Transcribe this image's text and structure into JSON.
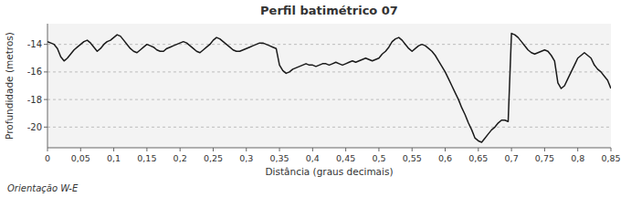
{
  "chart_data": {
    "type": "line",
    "title": "Perfil batimétrico 07",
    "xlabel": "Distância (graus decimais)",
    "ylabel": "Profundidade (metros)",
    "footnote": "Orientação W-E",
    "color": "#1a1a1a",
    "grid": true,
    "xlim": [
      0,
      0.85
    ],
    "ylim": [
      -21.5,
      -12.5
    ],
    "yticks": [
      -14,
      -16,
      -18,
      -20
    ],
    "xticks": [
      0,
      {
        "value": 0.05,
        "label": "0,05"
      },
      {
        "value": 0.1,
        "label": "0,1"
      },
      {
        "value": 0.15,
        "label": "0,15"
      },
      {
        "value": 0.2,
        "label": "0,2"
      },
      {
        "value": 0.25,
        "label": "0,25"
      },
      {
        "value": 0.3,
        "label": "0,3"
      },
      {
        "value": 0.35,
        "label": "0,35"
      },
      {
        "value": 0.4,
        "label": "0,4"
      },
      {
        "value": 0.45,
        "label": "0,45"
      },
      {
        "value": 0.5,
        "label": "0,5"
      },
      {
        "value": 0.55,
        "label": "0,55"
      },
      {
        "value": 0.6,
        "label": "0,6"
      },
      {
        "value": 0.65,
        "label": "0,65"
      },
      {
        "value": 0.7,
        "label": "0,7"
      },
      {
        "value": 0.75,
        "label": "0,75"
      },
      {
        "value": 0.8,
        "label": "0,8"
      },
      {
        "value": 0.85,
        "label": "0,85"
      }
    ],
    "x": [
      0.0,
      0.005,
      0.01,
      0.015,
      0.02,
      0.025,
      0.03,
      0.035,
      0.04,
      0.045,
      0.05,
      0.055,
      0.06,
      0.065,
      0.07,
      0.075,
      0.08,
      0.085,
      0.09,
      0.095,
      0.1,
      0.105,
      0.11,
      0.115,
      0.12,
      0.125,
      0.13,
      0.135,
      0.14,
      0.145,
      0.15,
      0.155,
      0.16,
      0.165,
      0.17,
      0.175,
      0.18,
      0.185,
      0.19,
      0.195,
      0.2,
      0.205,
      0.21,
      0.215,
      0.22,
      0.225,
      0.23,
      0.235,
      0.24,
      0.245,
      0.25,
      0.255,
      0.26,
      0.265,
      0.27,
      0.275,
      0.28,
      0.285,
      0.29,
      0.295,
      0.3,
      0.305,
      0.31,
      0.315,
      0.32,
      0.325,
      0.33,
      0.335,
      0.34,
      0.345,
      0.35,
      0.355,
      0.36,
      0.365,
      0.37,
      0.375,
      0.38,
      0.385,
      0.39,
      0.395,
      0.4,
      0.405,
      0.41,
      0.415,
      0.42,
      0.425,
      0.43,
      0.435,
      0.44,
      0.445,
      0.45,
      0.455,
      0.46,
      0.465,
      0.47,
      0.475,
      0.48,
      0.485,
      0.49,
      0.495,
      0.5,
      0.505,
      0.51,
      0.515,
      0.52,
      0.525,
      0.53,
      0.535,
      0.54,
      0.545,
      0.55,
      0.555,
      0.56,
      0.565,
      0.57,
      0.575,
      0.58,
      0.585,
      0.59,
      0.595,
      0.6,
      0.605,
      0.61,
      0.615,
      0.62,
      0.625,
      0.63,
      0.635,
      0.64,
      0.645,
      0.65,
      0.655,
      0.66,
      0.665,
      0.67,
      0.675,
      0.68,
      0.685,
      0.69,
      0.695,
      0.7,
      0.705,
      0.71,
      0.715,
      0.72,
      0.725,
      0.73,
      0.735,
      0.74,
      0.745,
      0.75,
      0.755,
      0.76,
      0.765,
      0.77,
      0.775,
      0.78,
      0.785,
      0.79,
      0.795,
      0.8,
      0.805,
      0.81,
      0.815,
      0.82,
      0.825,
      0.83,
      0.835,
      0.84,
      0.845,
      0.85
    ],
    "values": [
      -13.8,
      -13.9,
      -14.0,
      -14.3,
      -14.9,
      -15.2,
      -15.0,
      -14.7,
      -14.4,
      -14.2,
      -14.0,
      -13.8,
      -13.7,
      -13.9,
      -14.2,
      -14.5,
      -14.3,
      -14.0,
      -13.8,
      -13.7,
      -13.5,
      -13.3,
      -13.4,
      -13.7,
      -14.0,
      -14.3,
      -14.5,
      -14.6,
      -14.4,
      -14.2,
      -14.0,
      -14.1,
      -14.2,
      -14.4,
      -14.5,
      -14.5,
      -14.3,
      -14.2,
      -14.1,
      -14.0,
      -13.9,
      -13.8,
      -13.9,
      -14.1,
      -14.3,
      -14.5,
      -14.6,
      -14.4,
      -14.2,
      -14.0,
      -13.7,
      -13.5,
      -13.6,
      -13.8,
      -14.0,
      -14.2,
      -14.4,
      -14.5,
      -14.5,
      -14.4,
      -14.3,
      -14.2,
      -14.1,
      -14.0,
      -13.9,
      -13.9,
      -14.0,
      -14.1,
      -14.2,
      -14.3,
      -15.5,
      -15.9,
      -16.1,
      -16.0,
      -15.8,
      -15.7,
      -15.6,
      -15.5,
      -15.4,
      -15.5,
      -15.5,
      -15.6,
      -15.5,
      -15.4,
      -15.4,
      -15.5,
      -15.4,
      -15.3,
      -15.4,
      -15.5,
      -15.4,
      -15.3,
      -15.2,
      -15.3,
      -15.2,
      -15.1,
      -15.0,
      -15.1,
      -15.2,
      -15.1,
      -15.0,
      -14.7,
      -14.5,
      -14.2,
      -13.8,
      -13.6,
      -13.5,
      -13.7,
      -14.0,
      -14.3,
      -14.5,
      -14.3,
      -14.1,
      -14.0,
      -14.1,
      -14.3,
      -14.5,
      -14.8,
      -15.2,
      -15.6,
      -16.0,
      -16.5,
      -17.0,
      -17.5,
      -18.0,
      -18.6,
      -19.1,
      -19.7,
      -20.2,
      -20.8,
      -21.0,
      -21.1,
      -20.8,
      -20.5,
      -20.2,
      -20.0,
      -19.7,
      -19.5,
      -19.5,
      -19.6,
      -13.2,
      -13.3,
      -13.5,
      -13.8,
      -14.1,
      -14.4,
      -14.6,
      -14.7,
      -14.6,
      -14.5,
      -14.4,
      -14.5,
      -14.8,
      -15.2,
      -16.8,
      -17.2,
      -17.0,
      -16.5,
      -16.0,
      -15.5,
      -15.0,
      -14.8,
      -14.6,
      -14.8,
      -15.0,
      -15.5,
      -15.8,
      -16.0,
      -16.3,
      -16.6,
      -17.2
    ]
  }
}
